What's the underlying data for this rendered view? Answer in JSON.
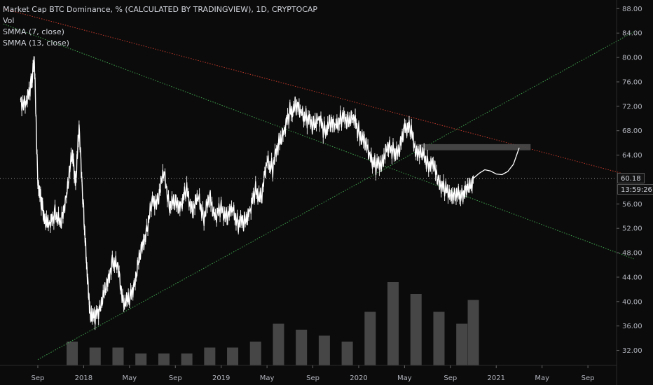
{
  "legend": {
    "title": "Market Cap BTC Dominance, % (CALCULATED BY TRADINGVIEW), 1D, CRYPTOCAP",
    "vol": "Vol",
    "smma7": "SMMA (7, close)",
    "smma13": "SMMA (13, close)"
  },
  "price_tags": {
    "last_value": "60.18",
    "countdown": "13:59:26"
  },
  "colors": {
    "background": "#0b0b0b",
    "price": "#ffffff",
    "volume": "#787878",
    "resistance_line": "#c0392b",
    "support_line": "#3fa34d",
    "zone": "#4a4a4a"
  },
  "chart_data": {
    "type": "line",
    "title": "Market Cap BTC Dominance, % (CALCULATED BY TRADINGVIEW), 1D, CRYPTOCAP",
    "yticks": [
      "88.00",
      "84.00",
      "80.00",
      "76.00",
      "72.00",
      "68.00",
      "64.00",
      "56.00",
      "52.00",
      "48.00",
      "44.00",
      "40.00",
      "36.00",
      "32.00"
    ],
    "ylim": [
      30,
      88.5
    ],
    "xticks": [
      {
        "label": "Sep",
        "t": 0
      },
      {
        "label": "2018",
        "t": 4
      },
      {
        "label": "May",
        "t": 8
      },
      {
        "label": "Sep",
        "t": 12
      },
      {
        "label": "2019",
        "t": 16
      },
      {
        "label": "May",
        "t": 20
      },
      {
        "label": "Sep",
        "t": 24
      },
      {
        "label": "2020",
        "t": 28
      },
      {
        "label": "May",
        "t": 32
      },
      {
        "label": "Sep",
        "t": 36
      },
      {
        "label": "2021",
        "t": 40
      },
      {
        "label": "May",
        "t": 44
      },
      {
        "label": "Sep",
        "t": 48
      }
    ],
    "price_series": {
      "name": "BTC Dominance",
      "t": [
        -1.5,
        -1,
        -0.6,
        -0.3,
        0,
        0.3,
        0.6,
        1,
        1.5,
        2,
        2.5,
        3,
        3.3,
        3.6,
        4,
        4.3,
        4.6,
        5,
        5.5,
        6,
        6.5,
        7,
        7.5,
        8,
        8.5,
        9,
        9.5,
        10,
        10.5,
        11,
        11.5,
        12,
        12.5,
        13,
        13.5,
        14,
        14.5,
        15,
        15.5,
        16,
        16.5,
        17,
        17.5,
        18,
        18.5,
        19,
        19.5,
        20,
        20.5,
        21,
        21.5,
        22,
        22.5,
        23,
        23.5,
        24,
        24.5,
        25,
        25.5,
        26,
        26.5,
        27,
        27.5,
        28,
        28.5,
        29,
        29.5,
        30,
        30.5,
        31,
        31.5,
        32,
        32.5,
        33,
        33.5,
        34,
        34.5,
        35,
        35.5,
        36,
        36.5,
        37,
        37.5,
        38
      ],
      "values": [
        73,
        72,
        76,
        79,
        60,
        56,
        54,
        52,
        55,
        52,
        58,
        64,
        60,
        68,
        55,
        44,
        38,
        37,
        40,
        42,
        47,
        45,
        40,
        40,
        44,
        48,
        52,
        56,
        57,
        61,
        56,
        56,
        56,
        58,
        55,
        57,
        54,
        57,
        54,
        55,
        54,
        55,
        53,
        53,
        55,
        58,
        57,
        63,
        62,
        66,
        68,
        71,
        72,
        71,
        70,
        69,
        70,
        68,
        69,
        69,
        70,
        70,
        70,
        68,
        66,
        64,
        62,
        63,
        65,
        65,
        64,
        69,
        68,
        65,
        64,
        63,
        62,
        60,
        58,
        58,
        57,
        58,
        58,
        60
      ]
    },
    "projection": {
      "t": [
        38,
        38.5,
        39,
        39.5,
        40,
        40.5,
        41,
        41.5,
        42
      ],
      "values": [
        60.18,
        61,
        61.6,
        61.4,
        60.9,
        60.8,
        61.3,
        62.5,
        65.2
      ]
    },
    "volume_series": {
      "name": "Vol",
      "t": [
        3,
        5,
        7,
        9,
        11,
        13,
        15,
        17,
        19,
        21,
        23,
        25,
        27,
        29,
        31,
        33,
        35,
        37,
        38
      ],
      "values": [
        4,
        3,
        3,
        2,
        2,
        2,
        3,
        3,
        4,
        7,
        6,
        5,
        4,
        9,
        14,
        12,
        9,
        7,
        11
      ]
    },
    "trendlines": [
      {
        "name": "resistance",
        "t": [
          -3,
          52
        ],
        "values": [
          88,
          60.5
        ]
      },
      {
        "name": "descending-support",
        "t": [
          -3,
          52
        ],
        "values": [
          85.5,
          47
        ]
      },
      {
        "name": "rising-support",
        "t": [
          0,
          52
        ],
        "values": [
          30.5,
          84.2
        ]
      }
    ],
    "zone": {
      "t": [
        33,
        43
      ],
      "values": [
        64.8,
        65.8
      ]
    }
  }
}
